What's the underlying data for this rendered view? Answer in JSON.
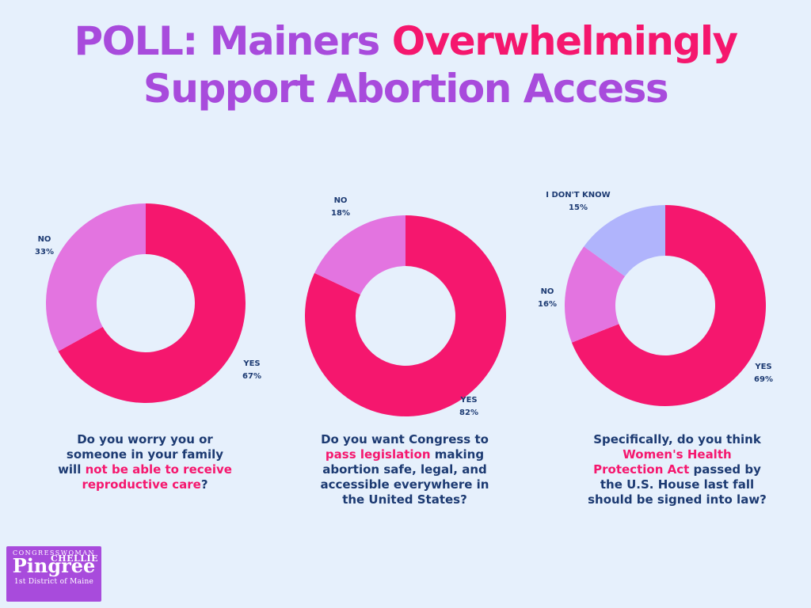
{
  "title": {
    "part1": "POLL: Mainers ",
    "part2": "Overwhelmingly",
    "part3": "Support Abortion Access"
  },
  "colors": {
    "yes": "#f5176e",
    "no": "#e374e0",
    "dont_know": "#b0b4fc",
    "text": "#1c3a72",
    "title": "#a84bdc",
    "highlight": "#f5176e",
    "background": "#e6f0fc"
  },
  "chart_data": [
    {
      "type": "pie",
      "slices": [
        {
          "label": "YES",
          "value": 67,
          "pct": "67%"
        },
        {
          "label": "NO",
          "value": 33,
          "pct": "33%"
        }
      ],
      "question": {
        "a": "Do you worry you or someone in your family will ",
        "b": "not be able to receive reproductive care",
        "c": "?"
      }
    },
    {
      "type": "pie",
      "slices": [
        {
          "label": "YES",
          "value": 82,
          "pct": "82%"
        },
        {
          "label": "NO",
          "value": 18,
          "pct": "18%"
        }
      ],
      "question": {
        "a": "Do you want Congress to ",
        "b": "pass legislation",
        "c": " making abortion safe, legal, and accessible everywhere in the United States?"
      }
    },
    {
      "type": "pie",
      "slices": [
        {
          "label": "YES",
          "value": 69,
          "pct": "69%"
        },
        {
          "label": "NO",
          "value": 16,
          "pct": "16%"
        },
        {
          "label": "I DON'T KNOW",
          "value": 15,
          "pct": "15%"
        }
      ],
      "question": {
        "a": "Specifically, do you think ",
        "b": "Women's Health Protection Act",
        "c": " passed by the U.S. House last fall should be signed into law?"
      }
    }
  ],
  "logo": {
    "line1": "CONGRESSWOMAN",
    "line2a": "Pingree",
    "line2b": "CHELLIE",
    "line3": "1st District of Maine"
  }
}
